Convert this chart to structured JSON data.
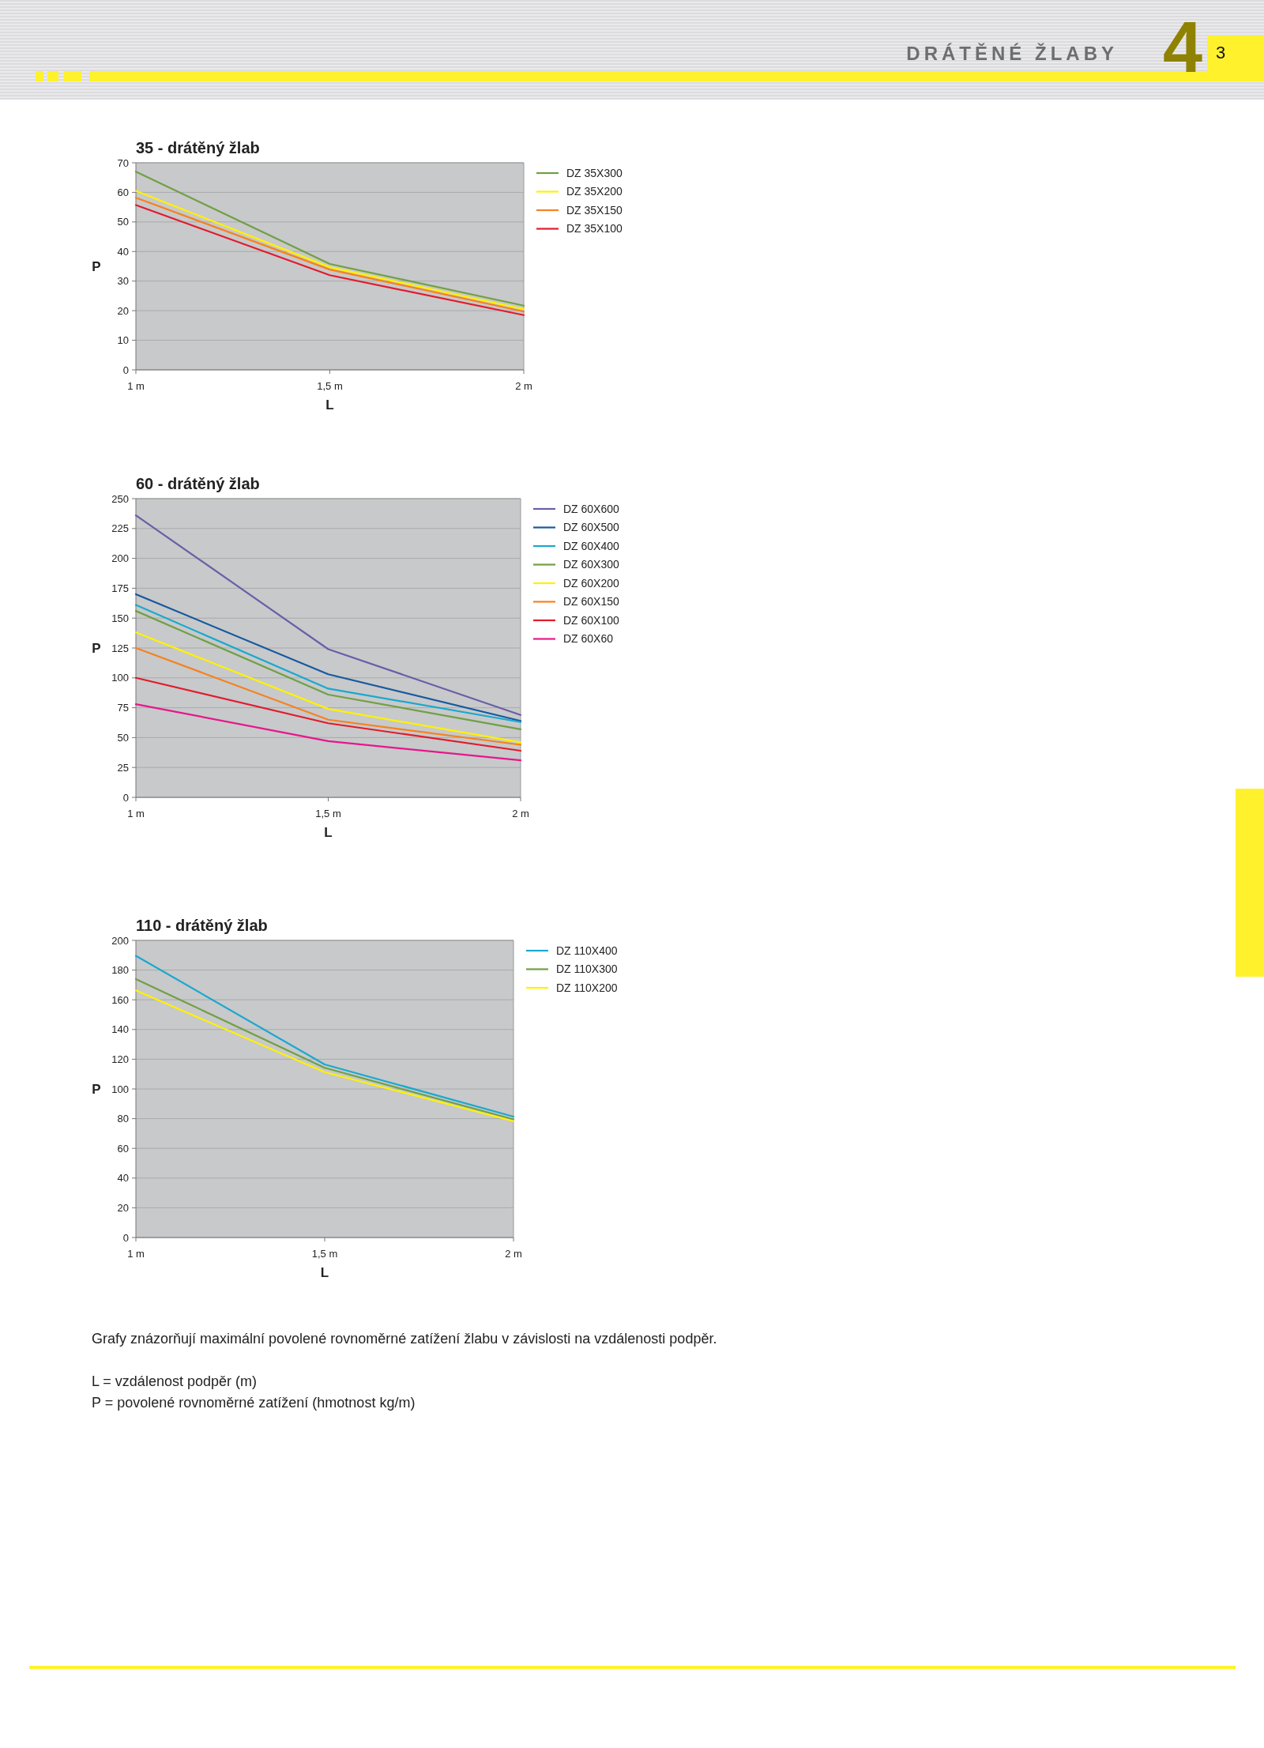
{
  "chart_data": [
    {
      "type": "other",
      "title": "DRÁTĚNÉ ŽLABY",
      "annotations": [
        "4",
        "3"
      ]
    },
    {
      "type": "line",
      "title": "35 - drátěný žlab",
      "xlabel": "L",
      "ylabel": "P",
      "categories": [
        "1 m",
        "1,5 m",
        "2 m"
      ],
      "ylim": [
        0,
        70
      ],
      "yticks": [
        0,
        10,
        20,
        30,
        40,
        50,
        60,
        70
      ],
      "grid": "y",
      "legend": "right",
      "series": [
        {
          "name": "DZ 35X300",
          "color": "#70a043",
          "values": [
            67,
            35.8,
            21.7
          ]
        },
        {
          "name": "DZ 35X200",
          "color": "#fff200",
          "values": [
            60.5,
            34.7,
            20.5
          ]
        },
        {
          "name": "DZ 35X150",
          "color": "#f58220",
          "values": [
            58.2,
            33.9,
            19.7
          ]
        },
        {
          "name": "DZ 35X100",
          "color": "#e11b2c",
          "values": [
            55.7,
            32,
            18.5
          ]
        }
      ]
    },
    {
      "type": "line",
      "title": "60 - drátěný žlab",
      "xlabel": "L",
      "ylabel": "P",
      "categories": [
        "1 m",
        "1,5 m",
        "2 m"
      ],
      "ylim": [
        0,
        250
      ],
      "yticks": [
        0,
        25,
        50,
        75,
        100,
        125,
        150,
        175,
        200,
        225,
        250
      ],
      "grid": "y",
      "legend": "right",
      "series": [
        {
          "name": "DZ 60X600",
          "color": "#6b5ea8",
          "values": [
            236,
            124,
            69
          ]
        },
        {
          "name": "DZ 60X500",
          "color": "#1559a0",
          "values": [
            170,
            103,
            64
          ]
        },
        {
          "name": "DZ 60X400",
          "color": "#19a9cf",
          "values": [
            161,
            91,
            63
          ]
        },
        {
          "name": "DZ 60X300",
          "color": "#70a043",
          "values": [
            156,
            86,
            57
          ]
        },
        {
          "name": "DZ 60X200",
          "color": "#fff200",
          "values": [
            138,
            74,
            46
          ]
        },
        {
          "name": "DZ 60X150",
          "color": "#f58220",
          "values": [
            125,
            65,
            44
          ]
        },
        {
          "name": "DZ 60X100",
          "color": "#e11b2c",
          "values": [
            100,
            62,
            39
          ]
        },
        {
          "name": "DZ 60X60",
          "color": "#e8168b",
          "values": [
            78,
            47,
            31
          ]
        }
      ]
    },
    {
      "type": "line",
      "title": "110 - drátěný žlab",
      "xlabel": "L",
      "ylabel": "P",
      "categories": [
        "1 m",
        "1,5 m",
        "2 m"
      ],
      "ylim": [
        0,
        200
      ],
      "yticks": [
        0,
        20,
        40,
        60,
        80,
        100,
        120,
        140,
        160,
        180,
        200
      ],
      "grid": "y",
      "legend": "right",
      "series": [
        {
          "name": "DZ 110X400",
          "color": "#19a9cf",
          "values": [
            189.6,
            116.5,
            81.4
          ]
        },
        {
          "name": "DZ 110X300",
          "color": "#70a043",
          "values": [
            174,
            114.2,
            79.5
          ]
        },
        {
          "name": "DZ 110X200",
          "color": "#fff200",
          "values": [
            166.3,
            111.3,
            78.3
          ]
        }
      ]
    },
    {
      "type": "other",
      "annotations": [
        "Grafy znázorňují maximální povolené rovnoměrné zatížení žlabu v závislosti na vzdálenosti podpěr.",
        "L = vzdálenost podpěr (m)",
        "P = povolené rovnoměrné zatížení (hmotnost kg/m)"
      ]
    }
  ]
}
